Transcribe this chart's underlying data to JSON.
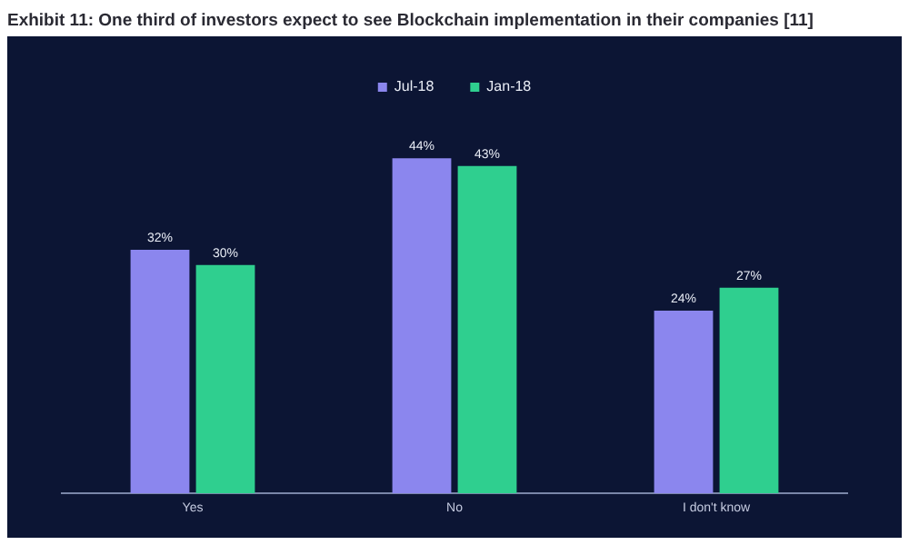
{
  "chart_data": {
    "type": "bar",
    "title": "Exhibit 11: One third of investors expect to see Blockchain implementation in their companies [11]",
    "categories": [
      "Yes",
      "No",
      "I don't know"
    ],
    "series": [
      {
        "name": "Jul-18",
        "color": "#8b86ee",
        "values": [
          32,
          44,
          24
        ],
        "value_labels": [
          "32%",
          "44%",
          "24%"
        ]
      },
      {
        "name": "Jan-18",
        "color": "#2fcf8f",
        "values": [
          30,
          43,
          27
        ],
        "value_labels": [
          "30%",
          "43%",
          "27%"
        ]
      }
    ],
    "legend": "top",
    "grid": false,
    "tick_labels": "x"
  }
}
